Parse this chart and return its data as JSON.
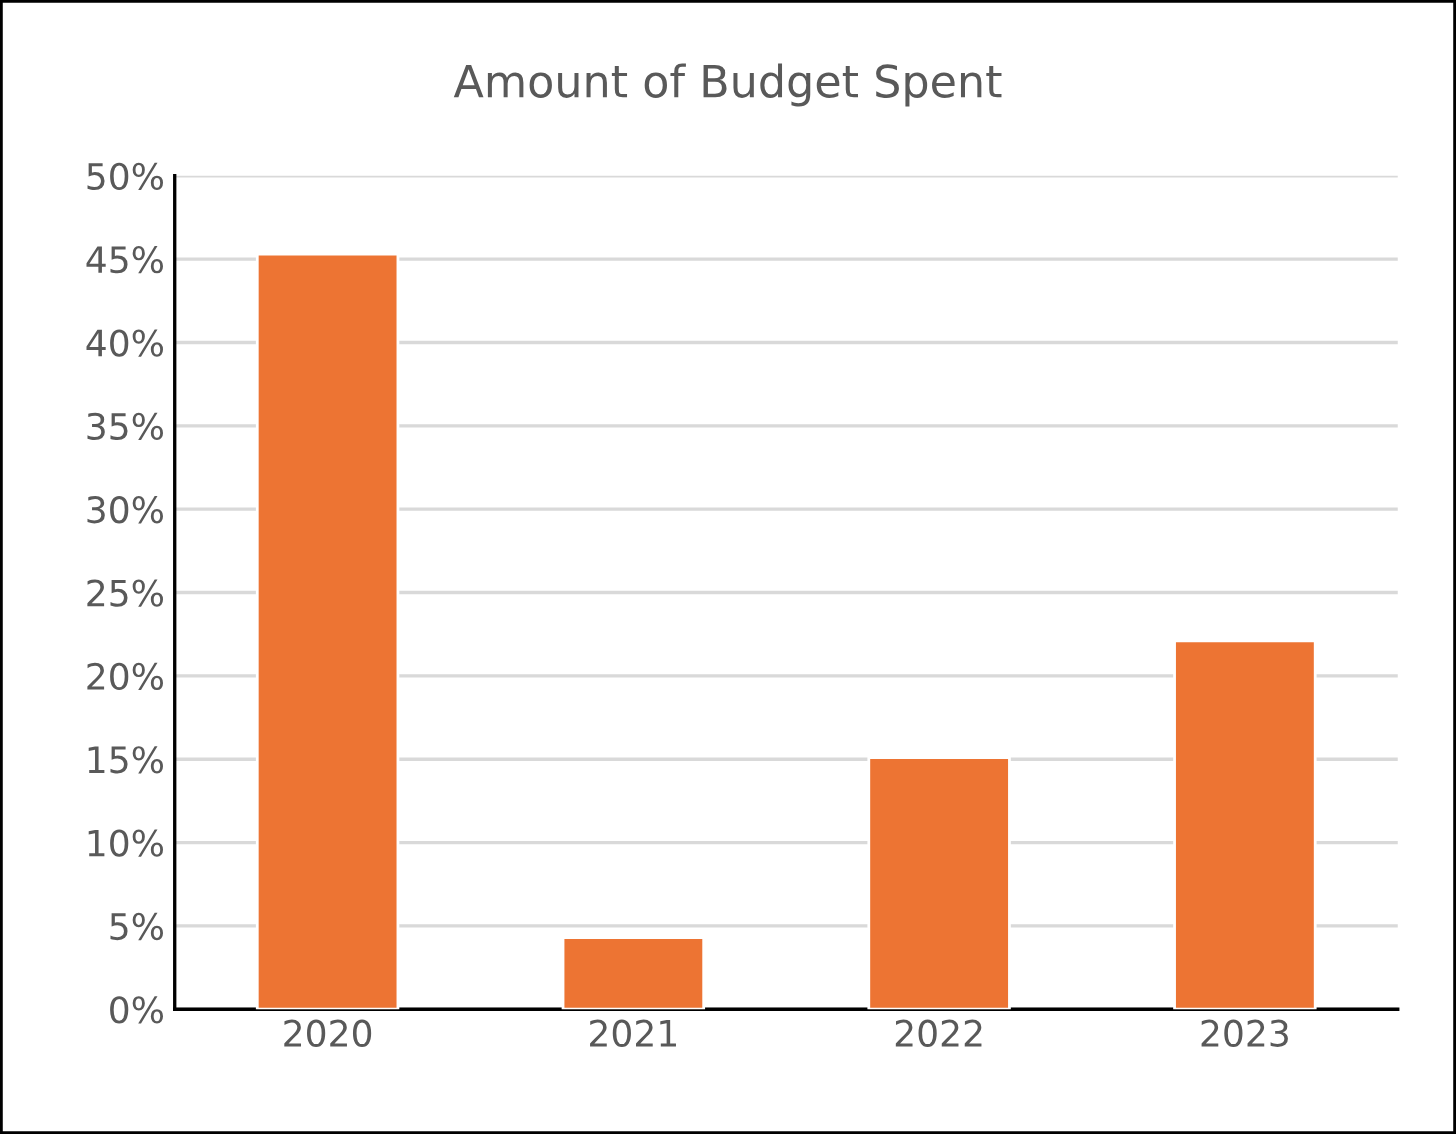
{
  "chart_data": {
    "type": "bar",
    "title": "Amount of Budget Spent",
    "categories": [
      "2020",
      "2021",
      "2022",
      "2023"
    ],
    "values": [
      45.3,
      4.3,
      15.1,
      22.1
    ],
    "color": "#ed7433",
    "ylim": [
      0,
      50
    ],
    "yticks": [
      {
        "value": 0,
        "label": "0%"
      },
      {
        "value": 5,
        "label": "5%"
      },
      {
        "value": 10,
        "label": "10%"
      },
      {
        "value": 15,
        "label": "15%"
      },
      {
        "value": 20,
        "label": "20%"
      },
      {
        "value": 25,
        "label": "25%"
      },
      {
        "value": 30,
        "label": "30%"
      },
      {
        "value": 35,
        "label": "35%"
      },
      {
        "value": 40,
        "label": "40%"
      },
      {
        "value": 45,
        "label": "45%"
      },
      {
        "value": 50,
        "label": "50%"
      }
    ],
    "grid": "y"
  }
}
